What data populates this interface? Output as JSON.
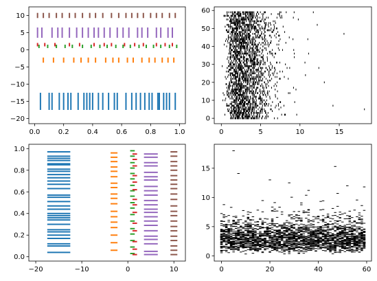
{
  "figure": {
    "background": "#ffffff",
    "tab_colors": [
      "#1f77b4",
      "#ff7f0e",
      "#2ca02c",
      "#d62728",
      "#9467bd",
      "#8c564b"
    ]
  },
  "chart_data": [
    {
      "panel": "top-left",
      "type": "eventplot",
      "orientation": "horizontal",
      "xlim": [
        -0.04,
        1.04
      ],
      "ylim": [
        -21.5,
        12.5
      ],
      "xticks": [
        0.0,
        0.2,
        0.4,
        0.6,
        0.8,
        1.0
      ],
      "xtick_labels": [
        "0.0",
        "0.2",
        "0.4",
        "0.6",
        "0.8",
        "1.0"
      ],
      "yticks": [
        -20,
        -15,
        -10,
        -5,
        0,
        5,
        10
      ],
      "ytick_labels": [
        "−20",
        "−15",
        "−10",
        "−5",
        "0",
        "5",
        "10"
      ],
      "grid": false,
      "series": [
        {
          "color": "#1f77b4",
          "line_offset": -15,
          "line_length": 5,
          "positions": [
            0.04,
            0.1,
            0.12,
            0.17,
            0.2,
            0.23,
            0.25,
            0.3,
            0.34,
            0.36,
            0.38,
            0.4,
            0.44,
            0.47,
            0.51,
            0.55,
            0.57,
            0.63,
            0.67,
            0.7,
            0.73,
            0.76,
            0.79,
            0.81,
            0.85,
            0.86,
            0.89,
            0.91,
            0.93,
            0.97
          ]
        },
        {
          "color": "#ff7f0e",
          "line_offset": -3,
          "line_length": 1.5,
          "positions": [
            0.06,
            0.13,
            0.2,
            0.27,
            0.32,
            0.37,
            0.42,
            0.49,
            0.54,
            0.58,
            0.64,
            0.68,
            0.74,
            0.79,
            0.83,
            0.88,
            0.92,
            0.96
          ]
        },
        {
          "color": "#2ca02c",
          "line_offset": 1,
          "line_length": 1,
          "positions": [
            0.03,
            0.09,
            0.15,
            0.21,
            0.26,
            0.33,
            0.39,
            0.45,
            0.5,
            0.56,
            0.61,
            0.66,
            0.72,
            0.77,
            0.82,
            0.87,
            0.93,
            0.98
          ]
        },
        {
          "color": "#d62728",
          "line_offset": 1.5,
          "line_length": 1,
          "positions": [
            0.02,
            0.07,
            0.14,
            0.24,
            0.31,
            0.41,
            0.48,
            0.53,
            0.62,
            0.69,
            0.75,
            0.84,
            0.9,
            0.95
          ]
        },
        {
          "color": "#9467bd",
          "line_offset": 5,
          "line_length": 3,
          "positions": [
            0.02,
            0.05,
            0.12,
            0.16,
            0.19,
            0.24,
            0.29,
            0.33,
            0.37,
            0.41,
            0.44,
            0.48,
            0.52,
            0.57,
            0.61,
            0.65,
            0.71,
            0.74,
            0.78,
            0.84,
            0.87,
            0.92,
            0.95
          ]
        },
        {
          "color": "#8c564b",
          "line_offset": 10,
          "line_length": 1.5,
          "positions": [
            0.02,
            0.06,
            0.1,
            0.15,
            0.19,
            0.24,
            0.28,
            0.33,
            0.38,
            0.42,
            0.47,
            0.53,
            0.58,
            0.63,
            0.67,
            0.71,
            0.75,
            0.8,
            0.84,
            0.88,
            0.93,
            0.97
          ]
        }
      ]
    },
    {
      "panel": "top-right",
      "type": "eventplot",
      "orientation": "horizontal",
      "color": "#000000",
      "xlim": [
        -0.9,
        19.1
      ],
      "ylim": [
        -3,
        62
      ],
      "xticks": [
        0,
        5,
        10,
        15
      ],
      "xtick_labels": [
        "0",
        "5",
        "10",
        "15"
      ],
      "yticks": [
        0,
        10,
        20,
        30,
        40,
        50,
        60
      ],
      "ytick_labels": [
        "0",
        "10",
        "20",
        "30",
        "40",
        "50",
        "60"
      ],
      "grid": false,
      "rows": 60,
      "line_length": 1,
      "row_generator": "each row i in 0..59 holds gamma-distributed event times (shape 4), concentrated near x≈3, spread to ≈10, rare outliers up to ≈18",
      "outliers": [
        [
          18.2,
          5
        ],
        [
          14.2,
          7
        ],
        [
          13.1,
          20
        ],
        [
          12.4,
          28
        ],
        [
          15.6,
          47
        ],
        [
          12.2,
          52
        ],
        [
          11.7,
          59
        ],
        [
          11.1,
          36
        ]
      ]
    },
    {
      "panel": "bottom-left",
      "type": "eventplot",
      "orientation": "vertical",
      "xlim": [
        -21.5,
        12.5
      ],
      "ylim": [
        -0.04,
        1.04
      ],
      "xticks": [
        -20,
        -10,
        0,
        10
      ],
      "xtick_labels": [
        "−20",
        "−10",
        "0",
        "10"
      ],
      "yticks": [
        0.0,
        0.2,
        0.4,
        0.6,
        0.8,
        1.0
      ],
      "ytick_labels": [
        "0.0",
        "0.2",
        "0.4",
        "0.6",
        "0.8",
        "1.0"
      ],
      "grid": false,
      "series": [
        {
          "color": "#1f77b4",
          "line_offset": -15,
          "line_length": 5,
          "positions": [
            0.04,
            0.1,
            0.12,
            0.17,
            0.2,
            0.23,
            0.25,
            0.3,
            0.34,
            0.36,
            0.38,
            0.4,
            0.44,
            0.47,
            0.51,
            0.55,
            0.57,
            0.63,
            0.67,
            0.7,
            0.73,
            0.76,
            0.79,
            0.81,
            0.85,
            0.86,
            0.89,
            0.91,
            0.93,
            0.97
          ]
        },
        {
          "color": "#ff7f0e",
          "line_offset": -3,
          "line_length": 1.5,
          "positions": [
            0.06,
            0.13,
            0.2,
            0.27,
            0.32,
            0.37,
            0.42,
            0.49,
            0.54,
            0.58,
            0.64,
            0.68,
            0.74,
            0.79,
            0.83,
            0.88,
            0.92,
            0.96
          ]
        },
        {
          "color": "#2ca02c",
          "line_offset": 1,
          "line_length": 1,
          "positions": [
            0.03,
            0.09,
            0.15,
            0.21,
            0.26,
            0.33,
            0.39,
            0.45,
            0.5,
            0.56,
            0.61,
            0.66,
            0.72,
            0.77,
            0.82,
            0.87,
            0.93,
            0.98
          ]
        },
        {
          "color": "#d62728",
          "line_offset": 1.5,
          "line_length": 1,
          "positions": [
            0.02,
            0.07,
            0.14,
            0.24,
            0.31,
            0.41,
            0.48,
            0.53,
            0.62,
            0.69,
            0.75,
            0.84,
            0.9,
            0.95
          ]
        },
        {
          "color": "#9467bd",
          "line_offset": 5,
          "line_length": 3,
          "positions": [
            0.02,
            0.05,
            0.12,
            0.16,
            0.19,
            0.24,
            0.29,
            0.33,
            0.37,
            0.41,
            0.44,
            0.48,
            0.52,
            0.57,
            0.61,
            0.65,
            0.71,
            0.74,
            0.78,
            0.84,
            0.87,
            0.92,
            0.95
          ]
        },
        {
          "color": "#8c564b",
          "line_offset": 10,
          "line_length": 1.5,
          "positions": [
            0.02,
            0.06,
            0.1,
            0.15,
            0.19,
            0.24,
            0.28,
            0.33,
            0.38,
            0.42,
            0.47,
            0.53,
            0.58,
            0.63,
            0.67,
            0.71,
            0.75,
            0.8,
            0.84,
            0.88,
            0.93,
            0.97
          ]
        }
      ]
    },
    {
      "panel": "bottom-right",
      "type": "eventplot",
      "orientation": "vertical",
      "color": "#000000",
      "xlim": [
        -3,
        62
      ],
      "ylim": [
        -0.9,
        19.1
      ],
      "xticks": [
        0,
        20,
        40,
        60
      ],
      "xtick_labels": [
        "0",
        "20",
        "40",
        "60"
      ],
      "yticks": [
        0,
        5,
        10,
        15
      ],
      "ytick_labels": [
        "0",
        "5",
        "10",
        "15"
      ],
      "grid": false,
      "rows": 60,
      "line_length": 1,
      "row_generator": "each column i in 0..59 holds gamma-distributed event times (shape 4), concentrated near y≈3, spread to ≈10, rare outliers up to ≈18",
      "outliers": [
        [
          5,
          18.0
        ],
        [
          7,
          14.1
        ],
        [
          20,
          13.0
        ],
        [
          28,
          12.5
        ],
        [
          47,
          15.3
        ],
        [
          52,
          12.0
        ],
        [
          59,
          11.8
        ],
        [
          36,
          11.2
        ]
      ]
    }
  ]
}
